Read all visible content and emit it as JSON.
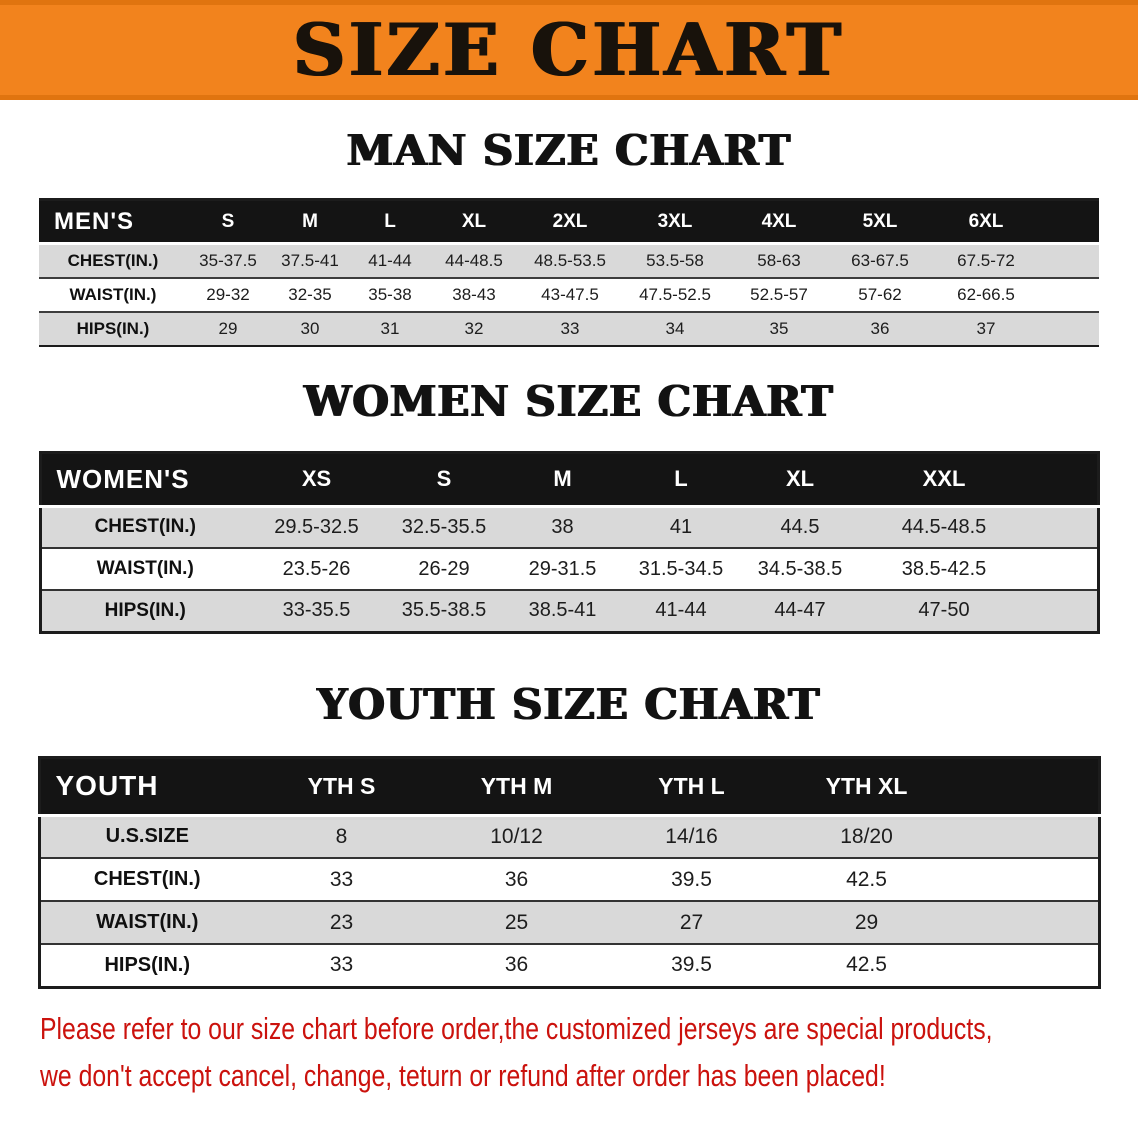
{
  "banner": {
    "title": "SIZE CHART"
  },
  "theme": {
    "banner_bg": "#f2831d",
    "banner_edge": "#e0740f",
    "banner_text": "#18120b",
    "header_row_bg": "#141414",
    "header_row_text": "#ffffff",
    "stripe_gray": "#d9d9d9",
    "table_border": "#1c1c1c",
    "notice_red": "#cb120d"
  },
  "sections": [
    {
      "id": "men",
      "heading": "MAN SIZE CHART",
      "table": {
        "corner_label": "MEN'S",
        "columns": [
          "S",
          "M",
          "L",
          "XL",
          "2XL",
          "3XL",
          "4XL",
          "5XL",
          "6XL"
        ],
        "rows": [
          {
            "label": "CHEST(IN.)",
            "values": [
              "35-37.5",
              "37.5-41",
              "41-44",
              "44-48.5",
              "48.5-53.5",
              "53.5-58",
              "58-63",
              "63-67.5",
              "67.5-72"
            ]
          },
          {
            "label": "WAIST(IN.)",
            "values": [
              "29-32",
              "32-35",
              "35-38",
              "38-43",
              "43-47.5",
              "47.5-52.5",
              "52.5-57",
              "57-62",
              "62-66.5"
            ]
          },
          {
            "label": "HIPS(IN.)",
            "values": [
              "29",
              "30",
              "31",
              "32",
              "33",
              "34",
              "35",
              "36",
              "37"
            ]
          }
        ]
      }
    },
    {
      "id": "women",
      "heading": "WOMEN SIZE CHART",
      "table": {
        "corner_label": "WOMEN'S",
        "columns": [
          "XS",
          "S",
          "M",
          "L",
          "XL",
          "XXL"
        ],
        "rows": [
          {
            "label": "CHEST(IN.)",
            "values": [
              "29.5-32.5",
              "32.5-35.5",
              "38",
              "41",
              "44.5",
              "44.5-48.5"
            ]
          },
          {
            "label": "WAIST(IN.)",
            "values": [
              "23.5-26",
              "26-29",
              "29-31.5",
              "31.5-34.5",
              "34.5-38.5",
              "38.5-42.5"
            ]
          },
          {
            "label": "HIPS(IN.)",
            "values": [
              "33-35.5",
              "35.5-38.5",
              "38.5-41",
              "41-44",
              "44-47",
              "47-50"
            ]
          }
        ]
      }
    },
    {
      "id": "youth",
      "heading": "YOUTH SIZE CHART",
      "table": {
        "corner_label": "YOUTH",
        "columns": [
          "YTH S",
          "YTH M",
          "YTH L",
          "YTH XL"
        ],
        "rows": [
          {
            "label": "U.S.SIZE",
            "values": [
              "8",
              "10/12",
              "14/16",
              "18/20"
            ]
          },
          {
            "label": "CHEST(IN.)",
            "values": [
              "33",
              "36",
              "39.5",
              "42.5"
            ]
          },
          {
            "label": "WAIST(IN.)",
            "values": [
              "23",
              "25",
              "27",
              "29"
            ]
          },
          {
            "label": "HIPS(IN.)",
            "values": [
              "33",
              "36",
              "39.5",
              "42.5"
            ]
          }
        ]
      }
    }
  ],
  "footer": {
    "lines": [
      "Please refer to our size chart before order,the customized jerseys are special products,",
      "we don't accept cancel, change, teturn or refund after order has been placed!"
    ]
  }
}
